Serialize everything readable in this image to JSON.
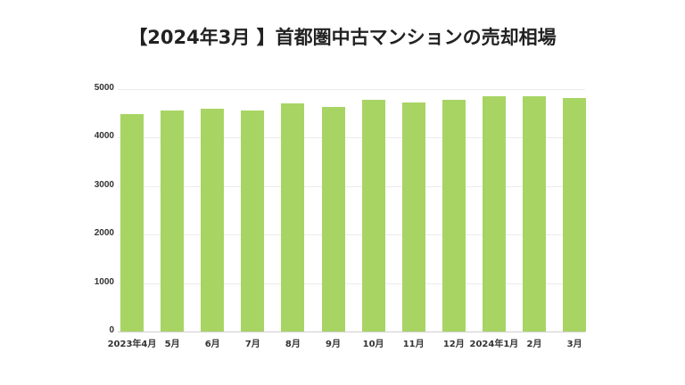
{
  "title": "【2024年3月 】首都圏中古マンションの売却相場",
  "colors": {
    "bar": "#a8d464",
    "grid": "#ececec"
  },
  "chart_data": {
    "type": "bar",
    "title": "【2024年3月 】首都圏中古マンションの売却相場",
    "xlabel": "",
    "ylabel": "",
    "categories": [
      "2023年4月",
      "5月",
      "6月",
      "7月",
      "8月",
      "9月",
      "10月",
      "11月",
      "12月",
      "2024年1月",
      "2月",
      "3月"
    ],
    "values": [
      4482,
      4560,
      4605,
      4555,
      4707,
      4628,
      4775,
      4720,
      4775,
      4854,
      4848,
      4811
    ],
    "ylim": [
      0,
      5000
    ],
    "yticks": [
      0,
      1000,
      2000,
      3000,
      4000,
      5000
    ],
    "grid": true,
    "legend": null
  }
}
